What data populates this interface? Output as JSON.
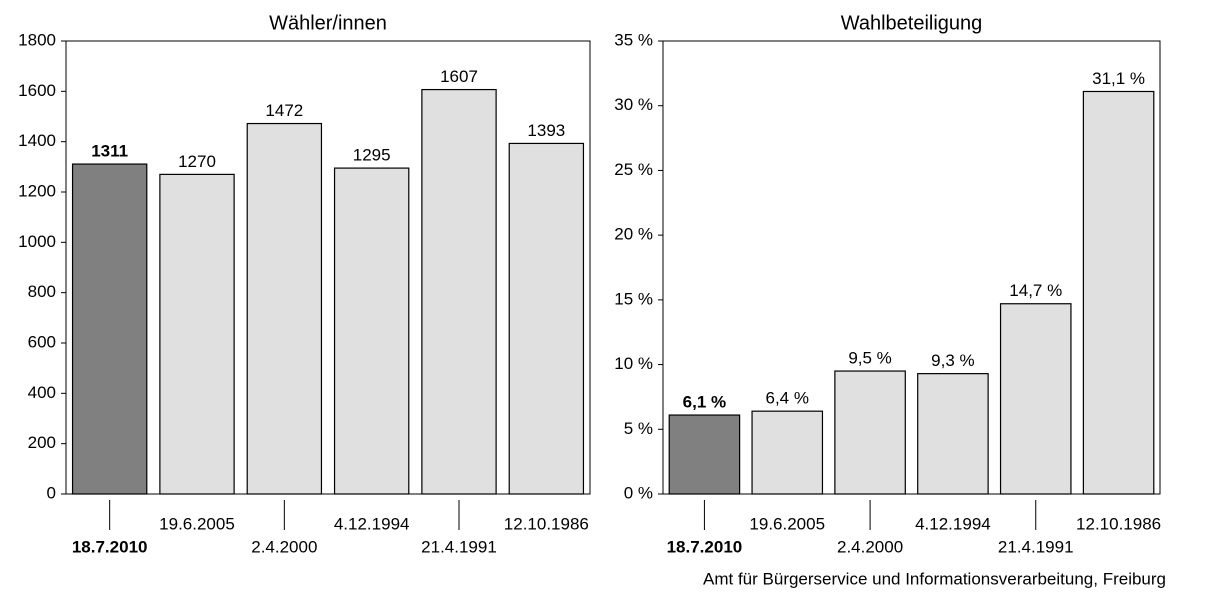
{
  "chart_data": [
    {
      "type": "bar",
      "title": "Wähler/innen",
      "categories": [
        "18.7.2010",
        "19.6.2005",
        "2.4.2000",
        "4.12.1994",
        "21.4.1991",
        "12.10.1986"
      ],
      "values": [
        1311,
        1270,
        1472,
        1295,
        1607,
        1393
      ],
      "colors": [
        "#808080",
        "#e0e0e0",
        "#e0e0e0",
        "#e0e0e0",
        "#e0e0e0",
        "#e0e0e0"
      ],
      "ylim": [
        0,
        1800
      ],
      "yticks": [
        0,
        200,
        400,
        600,
        800,
        1000,
        1200,
        1400,
        1600,
        1800
      ]
    },
    {
      "type": "bar",
      "title": "Wahlbeteiligung",
      "categories": [
        "18.7.2010",
        "19.6.2005",
        "2.4.2000",
        "4.12.1994",
        "21.4.1991",
        "12.10.1986"
      ],
      "values": [
        6.1,
        6.4,
        9.5,
        9.3,
        14.7,
        31.1
      ],
      "value_labels": [
        "6,1 %",
        "6,4 %",
        "9,5 %",
        "9,3 %",
        "14,7 %",
        "31,1 %"
      ],
      "colors": [
        "#808080",
        "#e0e0e0",
        "#e0e0e0",
        "#e0e0e0",
        "#e0e0e0",
        "#e0e0e0"
      ],
      "ylim": [
        0,
        35
      ],
      "yticks": [
        {
          "value": 0,
          "label": "0 %"
        },
        {
          "value": 5,
          "label": "5 %"
        },
        {
          "value": 10,
          "label": "10 %"
        },
        {
          "value": 15,
          "label": "15 %"
        },
        {
          "value": 20,
          "label": "20 %"
        },
        {
          "value": 25,
          "label": "25 %"
        },
        {
          "value": 30,
          "label": "30 %"
        },
        {
          "value": 35,
          "label": "35 %"
        }
      ]
    }
  ],
  "source": "Amt für Bürgerservice und Informationsverarbeitung, Freiburg"
}
